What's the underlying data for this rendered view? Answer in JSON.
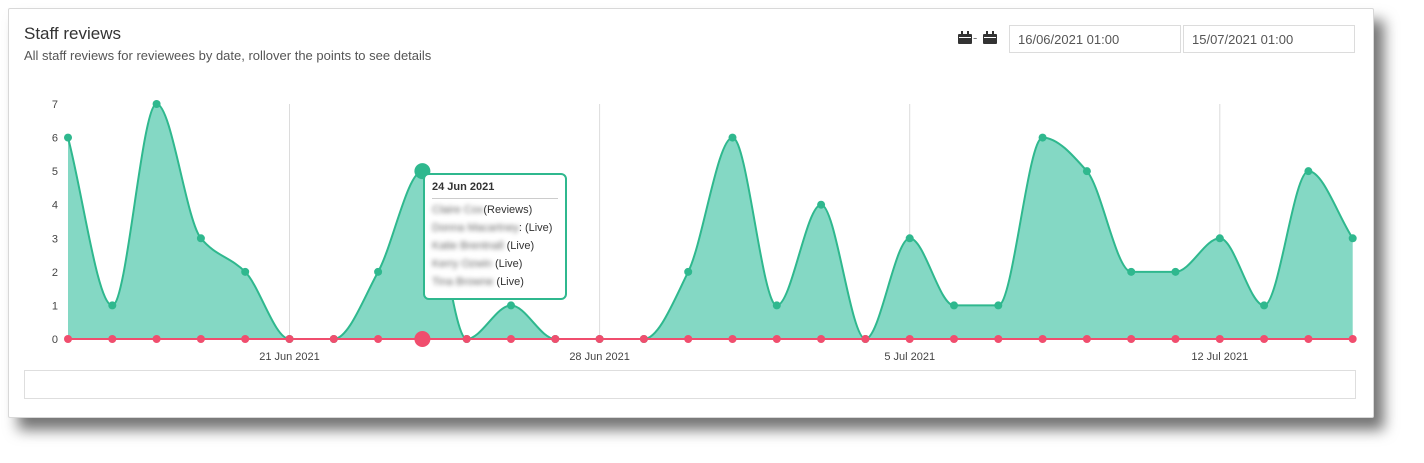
{
  "header": {
    "title": "Staff reviews",
    "subtitle": "All staff reviews for reviewees by date, rollover the points to see details"
  },
  "date_range": {
    "separator": "-",
    "start": "16/06/2021 01:00",
    "end": "15/07/2021 01:00"
  },
  "tooltip": {
    "date": "24 Jun 2021",
    "rows": [
      {
        "name": "Claire Cox",
        "suffix": "(Reviews)"
      },
      {
        "name": "Donna Macartney",
        "suffix": ": (Live)"
      },
      {
        "name": "Katie Brentnall",
        "suffix": " (Live)"
      },
      {
        "name": "Kerry Ozwin",
        "suffix": " (Live)"
      },
      {
        "name": "Tina Browne",
        "suffix": " (Live)"
      }
    ]
  },
  "colors": {
    "area_fill": "#84d8c4",
    "area_line": "#2fb88e",
    "zero_series": "#f04e6e"
  },
  "chart_data": {
    "type": "area",
    "x": [
      "16 Jun",
      "17 Jun",
      "18 Jun",
      "19 Jun",
      "20 Jun",
      "21 Jun",
      "22 Jun",
      "23 Jun",
      "24 Jun",
      "25 Jun",
      "26 Jun",
      "27 Jun",
      "28 Jun",
      "29 Jun",
      "30 Jun",
      "1 Jul",
      "2 Jul",
      "3 Jul",
      "4 Jul",
      "5 Jul",
      "6 Jul",
      "7 Jul",
      "8 Jul",
      "9 Jul",
      "10 Jul",
      "11 Jul",
      "12 Jul",
      "13 Jul",
      "14 Jul",
      "15 Jul"
    ],
    "series": [
      {
        "type": "area",
        "values": [
          6,
          1,
          7,
          3,
          2,
          0,
          0,
          2,
          5,
          0,
          1,
          0,
          0,
          0,
          2,
          6,
          1,
          4,
          0,
          3,
          1,
          1,
          6,
          5,
          2,
          2,
          3,
          1,
          5,
          3
        ]
      },
      {
        "type": "line",
        "values": [
          0,
          0,
          0,
          0,
          0,
          0,
          0,
          0,
          0,
          0,
          0,
          0,
          0,
          0,
          0,
          0,
          0,
          0,
          0,
          0,
          0,
          0,
          0,
          0,
          0,
          0,
          0,
          0,
          0,
          0
        ]
      }
    ],
    "x_tick_labels": [
      "21 Jun 2021",
      "28 Jun 2021",
      "5 Jul 2021",
      "12 Jul 2021"
    ],
    "x_tick_indices": [
      5,
      12,
      19,
      26
    ],
    "y_ticks": [
      0,
      1,
      2,
      3,
      4,
      5,
      6,
      7
    ],
    "ylim": [
      0,
      7
    ],
    "highlight_index": 8
  }
}
